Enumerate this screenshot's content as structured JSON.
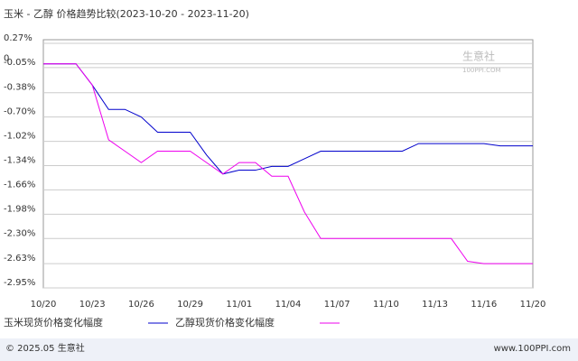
{
  "chart_data": {
    "type": "line",
    "title": "玉米 - 乙醇 价格趋势比较(2023-10-20 - 2023-11-20)",
    "watermark": "生意社",
    "watermark_sub": "100PPI.COM",
    "footer_left": "© 2025.05 生意社",
    "footer_right": "www.100PPI.com",
    "categories": [
      "10/20",
      null,
      null,
      "10/23",
      null,
      null,
      "10/26",
      null,
      null,
      "10/29",
      null,
      null,
      "11/01",
      null,
      null,
      "11/04",
      null,
      null,
      "11/07",
      null,
      null,
      "11/10",
      null,
      null,
      "11/13",
      null,
      null,
      "11/16",
      null,
      null,
      "11/20"
    ],
    "series": [
      {
        "name": "玉米现货价格变化幅度",
        "color": "#0000cc",
        "values": [
          0,
          0,
          0,
          -0.28,
          -0.6,
          -0.6,
          -0.7,
          -0.9,
          -0.9,
          -0.9,
          -1.2,
          -1.45,
          -1.4,
          -1.4,
          -1.35,
          -1.35,
          -1.25,
          -1.15,
          -1.15,
          -1.15,
          -1.15,
          -1.15,
          -1.15,
          -1.05,
          -1.05,
          -1.05,
          -1.05,
          -1.05,
          -1.08,
          -1.08,
          -1.08
        ]
      },
      {
        "name": "乙醇现货价格变化幅度",
        "color": "#ee00ee",
        "values": [
          0,
          0,
          0,
          -0.28,
          -1.0,
          -1.15,
          -1.3,
          -1.15,
          -1.15,
          -1.15,
          -1.3,
          -1.45,
          -1.3,
          -1.3,
          -1.48,
          -1.48,
          -1.95,
          -2.3,
          -2.3,
          -2.3,
          -2.3,
          -2.3,
          -2.3,
          -2.3,
          -2.3,
          -2.3,
          -2.6,
          -2.63,
          -2.63,
          -2.63,
          -2.63
        ]
      }
    ],
    "ylim": [
      -2.95,
      0.27
    ],
    "yticks": [
      {
        "value": 0.27,
        "label": "0.27%"
      },
      0,
      {
        "value": -0.05,
        "label": "-0.05%"
      },
      {
        "value": -0.38,
        "label": "-0.38%"
      },
      {
        "value": -0.7,
        "label": "-0.70%"
      },
      {
        "value": -1.02,
        "label": "-1.02%"
      },
      {
        "value": -1.34,
        "label": "-1.34%"
      },
      {
        "value": -1.66,
        "label": "-1.66%"
      },
      {
        "value": -1.98,
        "label": "-1.98%"
      },
      {
        "value": -2.3,
        "label": "-2.30%"
      },
      {
        "value": -2.63,
        "label": "-2.63%"
      },
      {
        "value": -2.95,
        "label": "-2.95%"
      }
    ],
    "grid": true
  }
}
